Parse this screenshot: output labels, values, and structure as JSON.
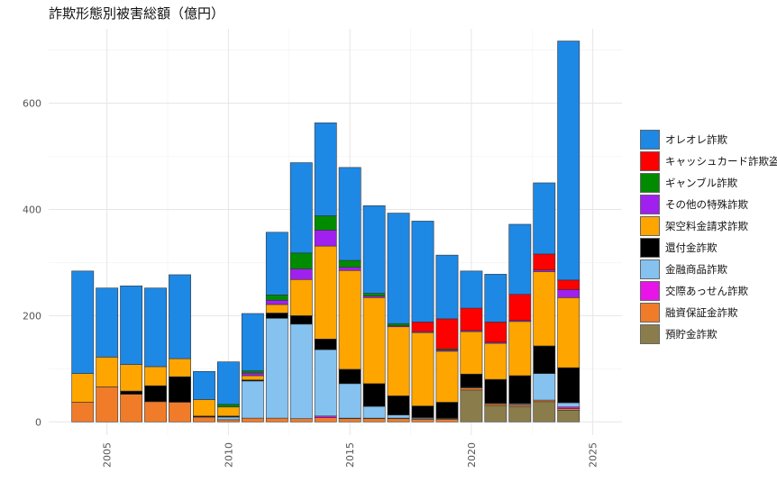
{
  "chart_data": {
    "type": "bar",
    "stacked": true,
    "title": "詐欺形態別被害総額（億円）",
    "xlabel": "",
    "ylabel": "",
    "xlim": [
      2002.6,
      2026.2
    ],
    "ylim": [
      -25,
      740
    ],
    "x_ticks": [
      2005,
      2010,
      2015,
      2020,
      2025
    ],
    "y_ticks": [
      0,
      200,
      400,
      600
    ],
    "grid": true,
    "legend_position": "right",
    "years": [
      2004,
      2005,
      2006,
      2007,
      2008,
      2009,
      2010,
      2011,
      2012,
      2013,
      2014,
      2015,
      2016,
      2017,
      2018,
      2019,
      2020,
      2021,
      2022,
      2023,
      2024
    ],
    "series": [
      {
        "name": "預貯金詐欺",
        "color": "#8B7D4B",
        "values": [
          0,
          0,
          0,
          0,
          0,
          0,
          0,
          0,
          0,
          0,
          0,
          0,
          0,
          0,
          0,
          0,
          60,
          31,
          29,
          38,
          22
        ]
      },
      {
        "name": "融資保証金詐欺",
        "color": "#F07C2A",
        "values": [
          37,
          66,
          52,
          38,
          37,
          9,
          4,
          7,
          7,
          6,
          8,
          6,
          6,
          6,
          5,
          5,
          4,
          3,
          3,
          3,
          3
        ]
      },
      {
        "name": "交際あっせん詐欺",
        "color": "#E815E8",
        "values": [
          0,
          0,
          0,
          0,
          0,
          0,
          0,
          0,
          0,
          0,
          3,
          1,
          1,
          1,
          1,
          1,
          0,
          0,
          0,
          0,
          3
        ]
      },
      {
        "name": "金融商品詐欺",
        "color": "#85C2F0",
        "values": [
          0,
          0,
          0,
          0,
          0,
          0,
          5,
          70,
          188,
          178,
          125,
          65,
          22,
          6,
          2,
          1,
          1,
          1,
          2,
          50,
          8
        ]
      },
      {
        "name": "還付金詐欺",
        "color": "#000000",
        "values": [
          0,
          0,
          6,
          30,
          48,
          2,
          2,
          2,
          10,
          16,
          20,
          27,
          43,
          36,
          22,
          30,
          25,
          45,
          53,
          52,
          66
        ]
      },
      {
        "name": "架空料金請求詐欺",
        "color": "#FFA500",
        "values": [
          54,
          56,
          50,
          36,
          34,
          31,
          17,
          8,
          16,
          68,
          175,
          186,
          162,
          130,
          138,
          96,
          80,
          68,
          102,
          140,
          132
        ]
      },
      {
        "name": "その他の特殊詐欺",
        "color": "#A020F0",
        "values": [
          0,
          0,
          0,
          0,
          0,
          0,
          0,
          5,
          8,
          20,
          30,
          6,
          3,
          2,
          2,
          2,
          2,
          2,
          2,
          3,
          15
        ]
      },
      {
        "name": "ギャンブル詐欺",
        "color": "#008B00",
        "values": [
          0,
          0,
          0,
          0,
          0,
          0,
          5,
          4,
          10,
          30,
          27,
          13,
          5,
          4,
          0,
          2,
          0,
          0,
          0,
          0,
          0
        ]
      },
      {
        "name": "キャッシュカード詐欺盗",
        "color": "#FF0000",
        "values": [
          0,
          0,
          0,
          0,
          0,
          0,
          0,
          0,
          0,
          0,
          0,
          0,
          0,
          0,
          18,
          57,
          42,
          38,
          49,
          30,
          18
        ]
      },
      {
        "name": "オレオレ詐欺",
        "color": "#1E88E5",
        "values": [
          193,
          130,
          148,
          148,
          158,
          53,
          80,
          108,
          118,
          170,
          175,
          175,
          165,
          208,
          190,
          120,
          70,
          90,
          132,
          134,
          450
        ]
      }
    ]
  }
}
